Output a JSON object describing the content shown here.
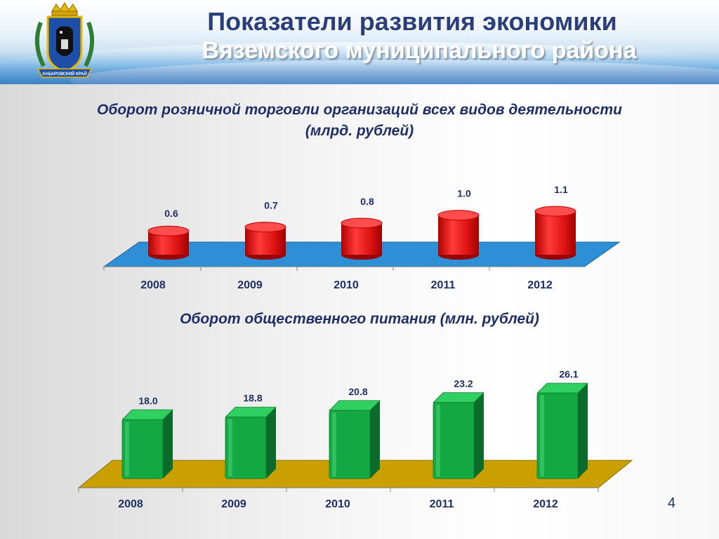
{
  "header": {
    "title_line1": "Показатели развития экономики",
    "title_line2": "Вяземского муниципального района",
    "emblem_text": "ХАБАРОВСКИЙ КРАЙ"
  },
  "colors": {
    "retail_bar": "#e01515",
    "retail_floor": "#2f8fd6",
    "food_bar": "#14a843",
    "food_floor": "#c9a000",
    "title_dark": "#2a3f7a"
  },
  "page_number": "4",
  "chart_data": [
    {
      "type": "bar",
      "title": "Оборот розничной торговли организаций всех видов деятельности (млрд. рублей)",
      "title_lines": [
        "Оборот розничной торговли организаций всех видов деятельности",
        "(млрд. рублей)"
      ],
      "categories": [
        "2008",
        "2009",
        "2010",
        "2011",
        "2012"
      ],
      "values": [
        0.6,
        0.7,
        0.8,
        1.0,
        1.1
      ],
      "labels": [
        "0.6",
        "0.7",
        "0.8",
        "1.0",
        "1.1"
      ],
      "xlabel": "",
      "ylabel": "",
      "ylim": [
        0,
        1.1
      ]
    },
    {
      "type": "bar",
      "title": "Оборот общественного питания (млн. рублей)",
      "title_lines": [
        "Оборот общественного питания (млн. рублей)"
      ],
      "categories": [
        "2008",
        "2009",
        "2010",
        "2011",
        "2012"
      ],
      "values": [
        18.0,
        18.8,
        20.8,
        23.2,
        26.1
      ],
      "labels": [
        "18.0",
        "18.8",
        "20.8",
        "23.2",
        "26.1"
      ],
      "xlabel": "",
      "ylabel": "",
      "ylim": [
        0,
        26.1
      ]
    }
  ]
}
